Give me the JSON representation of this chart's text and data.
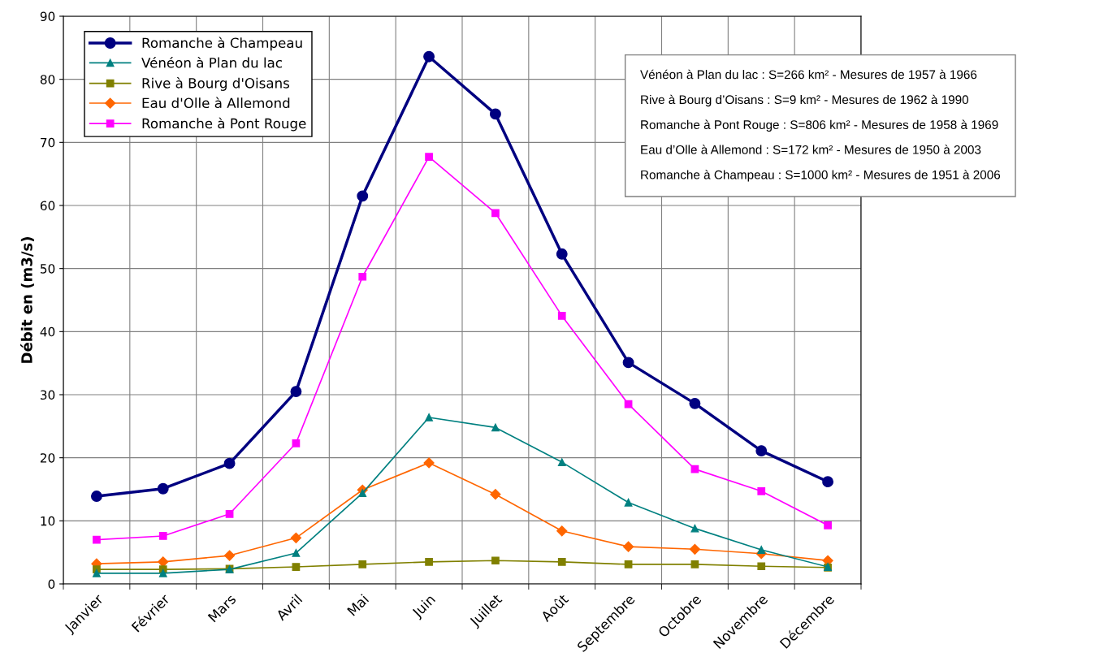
{
  "chart_data": {
    "type": "line",
    "ylabel": "Débit en (m3/s)",
    "categories": [
      "Janvier",
      "Février",
      "Mars",
      "Avril",
      "Mai",
      "Juin",
      "Juillet",
      "Août",
      "Septembre",
      "Octobre",
      "Novembre",
      "Décembre"
    ],
    "series": [
      {
        "name": "Romanche à Champeau",
        "color": "#000080",
        "marker": "circle",
        "values": [
          13.9,
          15.1,
          19.1,
          30.5,
          61.5,
          83.6,
          74.5,
          52.3,
          35.1,
          28.6,
          21.1,
          16.2
        ]
      },
      {
        "name": "Vénéon à Plan du lac",
        "color": "#008080",
        "marker": "triangle",
        "values": [
          1.7,
          1.7,
          2.3,
          4.9,
          14.4,
          26.4,
          24.8,
          19.3,
          12.9,
          8.8,
          5.4,
          2.7
        ]
      },
      {
        "name": "Rive à Bourg d'Oisans",
        "color": "#808000",
        "marker": "square",
        "values": [
          2.3,
          2.3,
          2.4,
          2.7,
          3.1,
          3.5,
          3.7,
          3.5,
          3.1,
          3.1,
          2.8,
          2.6
        ]
      },
      {
        "name": "Eau d'Olle à Allemond",
        "color": "#ff6600",
        "marker": "diamond",
        "values": [
          3.2,
          3.5,
          4.5,
          7.3,
          14.9,
          19.2,
          14.2,
          8.4,
          5.9,
          5.5,
          4.8,
          3.7
        ]
      },
      {
        "name": "Romanche à Pont Rouge",
        "color": "#ff00ff",
        "marker": "square",
        "values": [
          7.0,
          7.6,
          11.1,
          22.3,
          48.7,
          67.7,
          58.8,
          42.5,
          28.5,
          18.2,
          14.7,
          9.3
        ]
      }
    ],
    "ylim": [
      0,
      90
    ],
    "yticks": [
      0,
      10,
      20,
      30,
      40,
      50,
      60,
      70,
      80,
      90
    ],
    "grid": true,
    "legend": "top left",
    "line_style": "solid",
    "annotations": [
      "Vénéon à Plan du lac : S=266 km² - Mesures de 1957 à 1966",
      "Rive à Bourg d’Oisans : S=9 km² - Mesures de 1962 à 1990",
      "Romanche à Pont Rouge : S=806 km² - Mesures de 1958 à 1969",
      "Eau d’Olle à Allemond : S=172 km² - Mesures de 1950 à 2003",
      "Romanche à Champeau : S=1000 km² - Mesures de 1951 à 2006"
    ]
  }
}
